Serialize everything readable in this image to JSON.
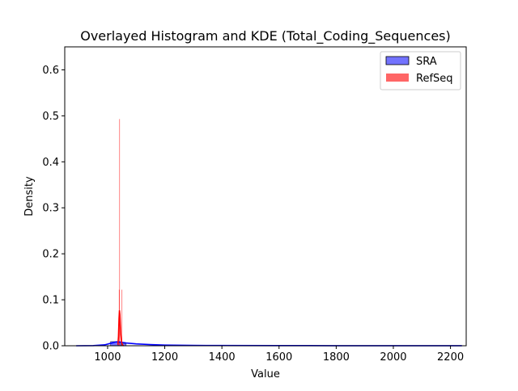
{
  "chart_data": {
    "type": "histogram",
    "title": "Overlayed Histogram and KDE (Total_Coding_Sequences)",
    "xlabel": "Value",
    "ylabel": "Density",
    "xlim": [
      850,
      2255
    ],
    "ylim": [
      0,
      0.65
    ],
    "x_ticks": [
      1000,
      1200,
      1400,
      1600,
      1800,
      2000,
      2200
    ],
    "y_ticks": [
      0.0,
      0.1,
      0.2,
      0.3,
      0.4,
      0.5,
      0.6
    ],
    "legend_position": "top-right",
    "series": [
      {
        "name": "SRA",
        "color": "#0000ff",
        "bars": [
          {
            "x0": 1010,
            "x1": 1037,
            "y": 0.009
          },
          {
            "x0": 1037,
            "x1": 1048,
            "y": 0.007
          },
          {
            "x0": 1048,
            "x1": 1065,
            "y": 0.005
          }
        ],
        "kde": [
          [
            890,
            0.0
          ],
          [
            950,
            0.0003
          ],
          [
            990,
            0.002
          ],
          [
            1015,
            0.006
          ],
          [
            1030,
            0.0085
          ],
          [
            1045,
            0.008
          ],
          [
            1065,
            0.006
          ],
          [
            1100,
            0.004
          ],
          [
            1150,
            0.0025
          ],
          [
            1200,
            0.0015
          ],
          [
            1300,
            0.0008
          ],
          [
            1400,
            0.0005
          ],
          [
            1600,
            0.0003
          ],
          [
            1800,
            0.0002
          ],
          [
            2000,
            0.00015
          ],
          [
            2240,
            0.0001
          ]
        ]
      },
      {
        "name": "RefSeq",
        "color": "#ff0000",
        "bars": [
          {
            "x0": 1039.5,
            "x1": 1040.7,
            "y": 0.122
          },
          {
            "x0": 1040.7,
            "x1": 1041.9,
            "y": 0.493
          },
          {
            "x0": 1044.5,
            "x1": 1045.2,
            "y": 0.0015
          },
          {
            "x0": 1049.0,
            "x1": 1050.2,
            "y": 0.122
          }
        ],
        "kde": [
          [
            1036,
            0.002
          ],
          [
            1038,
            0.02
          ],
          [
            1040,
            0.06
          ],
          [
            1041.5,
            0.077
          ],
          [
            1043,
            0.068
          ],
          [
            1044.5,
            0.045
          ],
          [
            1046,
            0.025
          ],
          [
            1048,
            0.012
          ],
          [
            1050,
            0.005
          ],
          [
            1053,
            0.001
          ],
          [
            1056,
            0.0
          ]
        ]
      }
    ]
  }
}
